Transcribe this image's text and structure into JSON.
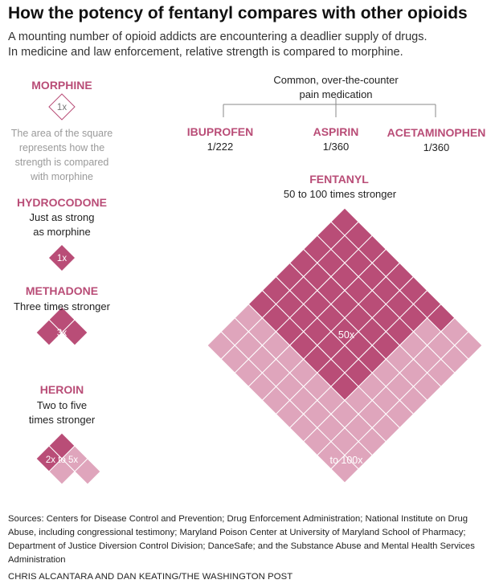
{
  "title": "How the potency of fentanyl compares with other opioids",
  "subtitle_lines": [
    "A mounting number of opioid addicts are encountering a deadlier supply of drugs.",
    "In medicine and law enforcement, relative strength is compared to morphine."
  ],
  "colors": {
    "dark": "#b94d77",
    "light": "#dfa5bc",
    "accent_text": "#b94d77",
    "grid_line": "#ffffff"
  },
  "legend": {
    "name": "MORPHINE",
    "label": "1x",
    "note_lines": [
      "The area of the square",
      "represents how the",
      "strength is compared",
      "with morphine"
    ]
  },
  "otc": {
    "header_lines": [
      "Common, over-the-counter",
      "pain medication"
    ],
    "items": [
      {
        "name": "IBUPROFEN",
        "ratio": "1/222"
      },
      {
        "name": "ASPIRIN",
        "ratio": "1/360"
      },
      {
        "name": "ACETAMINOPHEN",
        "ratio": "1/360"
      }
    ]
  },
  "drugs": {
    "hydrocodone": {
      "name": "HYDROCODONE",
      "desc_lines": [
        "Just as strong",
        "as morphine"
      ],
      "label": "1x"
    },
    "methadone": {
      "name": "METHADONE",
      "desc_lines": [
        "Three times stronger"
      ],
      "label": "3x"
    },
    "heroin": {
      "name": "HEROIN",
      "desc_lines": [
        "Two to five",
        "times stronger"
      ],
      "label": "2x to 5x"
    },
    "fentanyl": {
      "name": "FENTANYL",
      "desc_lines": [
        "50 to 100 times stronger"
      ],
      "label_low": "50x",
      "label_high": "to 100x"
    }
  },
  "chart_data": {
    "type": "area-squares",
    "title": "How the potency of fentanyl compares with other opioids",
    "unit": "times the strength of morphine (1 square = morphine)",
    "series": [
      {
        "name": "Morphine",
        "min": 1,
        "max": 1,
        "label": "1x"
      },
      {
        "name": "Hydrocodone",
        "min": 1,
        "max": 1,
        "label": "1x"
      },
      {
        "name": "Methadone",
        "min": 3,
        "max": 3,
        "label": "3x"
      },
      {
        "name": "Heroin",
        "min": 2,
        "max": 5,
        "label": "2x to 5x"
      },
      {
        "name": "Fentanyl",
        "min": 50,
        "max": 100,
        "label": "50x to 100x"
      }
    ],
    "comparisons": [
      {
        "name": "Ibuprofen",
        "value": "1/222"
      },
      {
        "name": "Aspirin",
        "value": "1/360"
      },
      {
        "name": "Acetaminophen",
        "value": "1/360"
      }
    ]
  },
  "sources": "Sources: Centers for Disease Control and Prevention; Drug Enforcement Administration; National Institute on Drug Abuse, including congressional testimony; Maryland Poison Center at University of Maryland School of Pharmacy; Department of Justice Diversion Control Division; DanceSafe; and the Substance Abuse and Mental Health Services Administration",
  "credit": "CHRIS ALCANTARA AND DAN KEATING/THE WASHINGTON POST"
}
